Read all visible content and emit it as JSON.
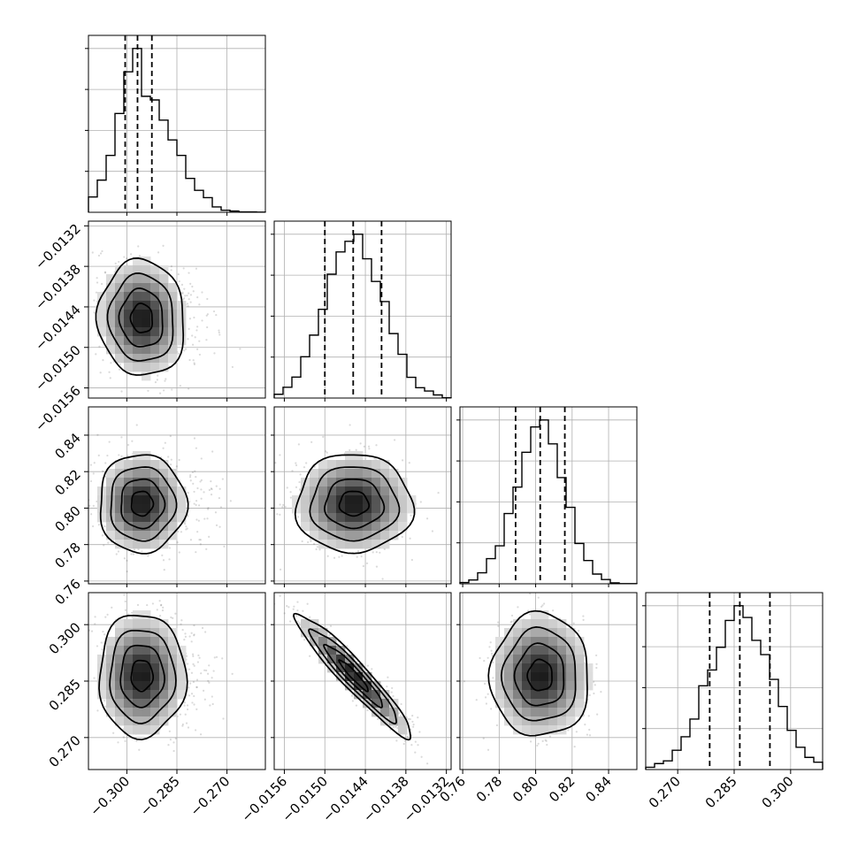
{
  "chart_data": {
    "type": "corner",
    "parameters": [
      {
        "name": "",
        "mean": -0.2955,
        "sd": 0.0065,
        "range": [
          -0.3115,
          -0.2585
        ],
        "q16": -0.3005,
        "q50": -0.2968,
        "q84": -0.2925,
        "skew": 0.9,
        "ticks": [
          -0.3,
          -0.285,
          -0.27
        ],
        "tick_labels": [
          "−0.300",
          "−0.285",
          "−0.270"
        ]
      },
      {
        "name": "",
        "mean": -0.01457,
        "sd": 0.00043,
        "range": [
          -0.01575,
          -0.01313
        ],
        "q16": -0.015,
        "q50": -0.01458,
        "q84": -0.01416,
        "skew": 0,
        "ticks": [
          -0.0156,
          -0.015,
          -0.0144,
          -0.0138,
          -0.0132
        ],
        "tick_labels": [
          "−0.0156",
          "−0.0150",
          "−0.0144",
          "−0.0138",
          "−0.0132"
        ]
      },
      {
        "name": "",
        "mean": 0.8025,
        "sd": 0.0135,
        "range": [
          0.7585,
          0.8555
        ],
        "q16": 0.789,
        "q50": 0.8025,
        "q84": 0.816,
        "skew": 0,
        "ticks": [
          0.76,
          0.78,
          0.8,
          0.82,
          0.84
        ],
        "tick_labels": [
          "0.76",
          "0.78",
          "0.80",
          "0.82",
          "0.84"
        ]
      },
      {
        "name": "",
        "mean": 0.2865,
        "sd": 0.0082,
        "range": [
          0.2615,
          0.3085
        ],
        "q16": 0.2785,
        "q50": 0.2865,
        "q84": 0.2945,
        "skew": 0,
        "ticks": [
          0.27,
          0.285,
          0.3
        ],
        "tick_labels": [
          "0.270",
          "0.285",
          "0.300"
        ]
      }
    ],
    "correlations": {
      "0-1": -0.05,
      "0-2": 0.0,
      "0-3": 0.0,
      "1-2": 0.0,
      "1-3": -0.95,
      "2-3": 0.0
    },
    "contour_levels_sigma": [
      0.5,
      1.0,
      1.5,
      2.0
    ],
    "grid": true,
    "quantiles": [
      0.16,
      0.5,
      0.84
    ]
  }
}
